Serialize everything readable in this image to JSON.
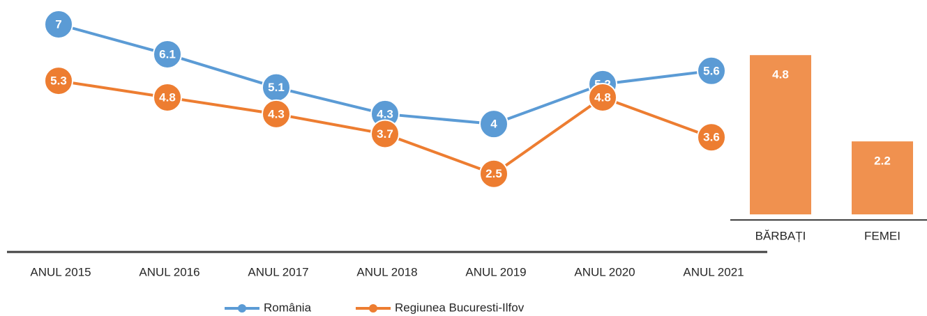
{
  "chart_data": [
    {
      "type": "line",
      "categories": [
        "ANUL 2015",
        "ANUL 2016",
        "ANUL 2017",
        "ANUL 2018",
        "ANUL 2019",
        "ANUL 2020",
        "ANUL 2021"
      ],
      "series": [
        {
          "name": "România",
          "color": "#5b9bd5",
          "values": [
            7,
            6.1,
            5.1,
            4.3,
            4,
            5.2,
            5.6
          ]
        },
        {
          "name": "Regiunea Bucuresti-Ilfov",
          "color": "#ed7d31",
          "values": [
            5.3,
            4.8,
            4.3,
            3.7,
            2.5,
            4.8,
            3.6
          ]
        }
      ],
      "ylim": [
        0,
        7
      ],
      "legend": "bottom"
    },
    {
      "type": "bar",
      "categories": [
        "BĂRBAȚI",
        "FEMEI"
      ],
      "values": [
        4.8,
        2.2
      ],
      "color": "#f0914f",
      "ylim": [
        0,
        6
      ]
    }
  ]
}
